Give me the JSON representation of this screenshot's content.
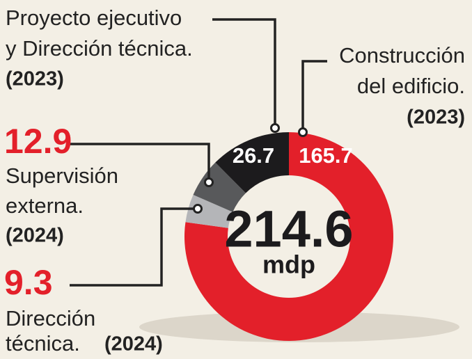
{
  "chart_data": {
    "type": "donut",
    "total": 214.6,
    "unit": "mdp",
    "slices": [
      {
        "name_lines": [
          "Construcción",
          "del edificio."
        ],
        "year": "(2023)",
        "value": 165.7,
        "color": "#e3202a"
      },
      {
        "name_lines": [
          "Dirección",
          "técnica."
        ],
        "year": "(2024)",
        "value": 9.3,
        "color": "#b4b5b8"
      },
      {
        "name_lines": [
          "Supervisión",
          "externa."
        ],
        "year": "(2024)",
        "value": 12.9,
        "color": "#58595b"
      },
      {
        "name_lines": [
          "Proyecto ejecutivo",
          "y Dirección técnica."
        ],
        "year": "(2023)",
        "value": 26.7,
        "color": "#1c1b1d"
      }
    ]
  }
}
